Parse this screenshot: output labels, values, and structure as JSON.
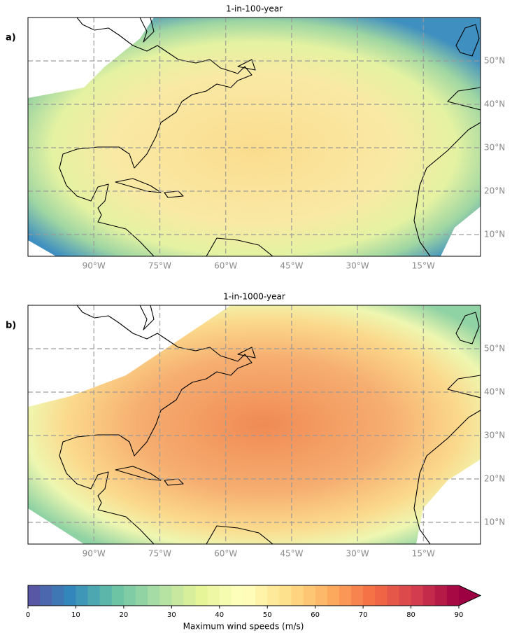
{
  "panels": [
    {
      "label": "a)",
      "title": "1-in-100-year",
      "xlim": [
        -105,
        -2
      ],
      "ylim": [
        5,
        60
      ],
      "xticks": [
        {
          "value": -90,
          "label": "90°W"
        },
        {
          "value": -75,
          "label": "75°W"
        },
        {
          "value": -60,
          "label": "60°W"
        },
        {
          "value": -45,
          "label": "45°W"
        },
        {
          "value": -30,
          "label": "30°W"
        },
        {
          "value": -15,
          "label": "15°W"
        }
      ],
      "yticks": [
        {
          "value": 10,
          "label": "10°N"
        },
        {
          "value": 20,
          "label": "20°N"
        },
        {
          "value": 30,
          "label": "30°N"
        },
        {
          "value": 40,
          "label": "40°N"
        },
        {
          "value": 50,
          "label": "50°N"
        }
      ]
    },
    {
      "label": "b)",
      "title": "1-in-1000-year",
      "xlim": [
        -105,
        -2
      ],
      "ylim": [
        5,
        60
      ],
      "xticks": [
        {
          "value": -90,
          "label": "90°W"
        },
        {
          "value": -75,
          "label": "75°W"
        },
        {
          "value": -60,
          "label": "60°W"
        },
        {
          "value": -45,
          "label": "45°W"
        },
        {
          "value": -30,
          "label": "30°W"
        },
        {
          "value": -15,
          "label": "15°W"
        }
      ],
      "yticks": [
        {
          "value": 10,
          "label": "10°N"
        },
        {
          "value": 20,
          "label": "20°N"
        },
        {
          "value": 30,
          "label": "30°N"
        },
        {
          "value": 40,
          "label": "40°N"
        },
        {
          "value": 50,
          "label": "50°N"
        }
      ]
    }
  ],
  "colorbar": {
    "label": "Maximum wind speeds (m/s)",
    "range": [
      0,
      90
    ],
    "ticks": [
      0,
      10,
      20,
      30,
      40,
      50,
      60,
      70,
      80,
      90
    ]
  }
}
